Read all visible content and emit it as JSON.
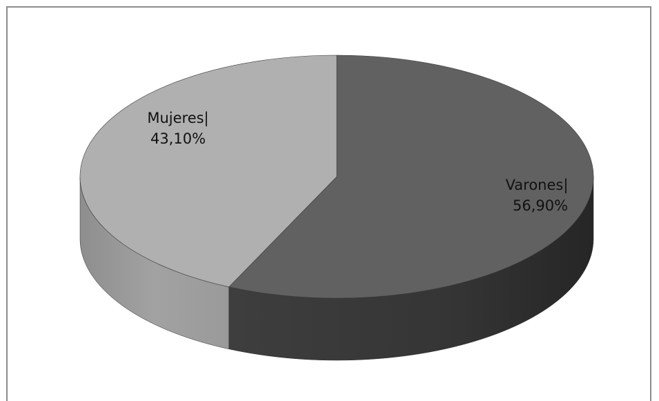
{
  "chart_data": {
    "type": "pie",
    "title": "",
    "legend": "none",
    "style": "3d",
    "slices": [
      {
        "name": "Varones",
        "value": 56.9,
        "label_line1": "Varones|",
        "label_line2": "56,90%",
        "color": "#616161"
      },
      {
        "name": "Mujeres",
        "value": 43.1,
        "label_line1": "Mujeres|",
        "label_line2": "43,10%",
        "color": "#b0b0b0"
      }
    ]
  }
}
